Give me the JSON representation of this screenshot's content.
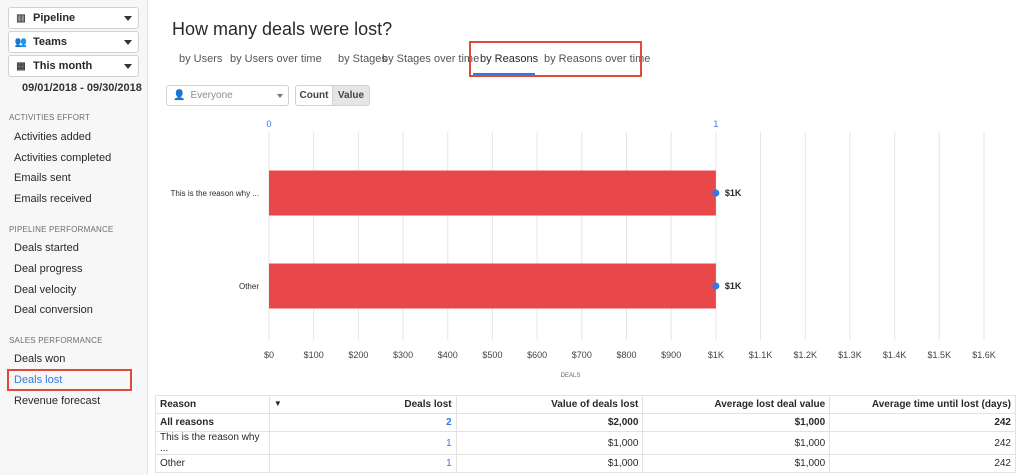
{
  "sidebar": {
    "pipeline_dd": {
      "label": "Pipeline"
    },
    "teams_dd": {
      "label": "Teams"
    },
    "period_dd": {
      "label": "This month"
    },
    "date_range": "09/01/2018 - 09/30/2018",
    "sections": [
      {
        "title": "ACTIVITIES EFFORT",
        "items": [
          "Activities added",
          "Activities completed",
          "Emails sent",
          "Emails received"
        ]
      },
      {
        "title": "PIPELINE PERFORMANCE",
        "items": [
          "Deals started",
          "Deal progress",
          "Deal velocity",
          "Deal conversion"
        ]
      },
      {
        "title": "SALES PERFORMANCE",
        "items": [
          "Deals won",
          "Deals lost",
          "Revenue forecast"
        ]
      }
    ],
    "active_item": "Deals lost"
  },
  "main": {
    "title": "How many deals were lost?",
    "tabs": [
      "by Users",
      "by Users over time",
      "by Stages",
      "by Stages over time",
      "by Reasons",
      "by Reasons over time"
    ],
    "active_tab": "by Reasons",
    "owner_filter": {
      "value": "Everyone"
    },
    "toggle": {
      "count_label": "Count",
      "value_label": "Value",
      "active": "Value"
    }
  },
  "chart_data": {
    "type": "bar",
    "orientation": "horizontal",
    "categories": [
      "This is the reason why ...",
      "Other"
    ],
    "values": [
      1000,
      1000
    ],
    "data_labels": [
      "$1K",
      "$1K"
    ],
    "bar_color": "#e8484a",
    "xlabel": "DEALS",
    "xlim": [
      0,
      1600
    ],
    "x_ticks": [
      "$0",
      "$100",
      "$200",
      "$300",
      "$400",
      "$500",
      "$600",
      "$700",
      "$800",
      "$900",
      "$1K",
      "$1.1K",
      "$1.2K",
      "$1.3K",
      "$1.4K",
      "$1.5K",
      "$1.6K"
    ],
    "count_axis": {
      "ticks": [
        "0",
        "1"
      ],
      "values": [
        0,
        1
      ]
    },
    "grid": true
  },
  "table": {
    "headers": [
      "Reason",
      "Deals lost",
      "Value of deals lost",
      "Average lost deal value",
      "Average time until lost (days)"
    ],
    "rows": [
      {
        "reason": "All reasons",
        "deals_lost": "2",
        "value": "$2,000",
        "avg_value": "$1,000",
        "avg_time": "242"
      },
      {
        "reason": "This is the reason why ...",
        "deals_lost": "1",
        "value": "$1,000",
        "avg_value": "$1,000",
        "avg_time": "242"
      },
      {
        "reason": "Other",
        "deals_lost": "1",
        "value": "$1,000",
        "avg_value": "$1,000",
        "avg_time": "242"
      }
    ]
  },
  "colors": {
    "accent": "#317ae2",
    "highlight": "#e04a3a",
    "bar": "#e8484a"
  }
}
